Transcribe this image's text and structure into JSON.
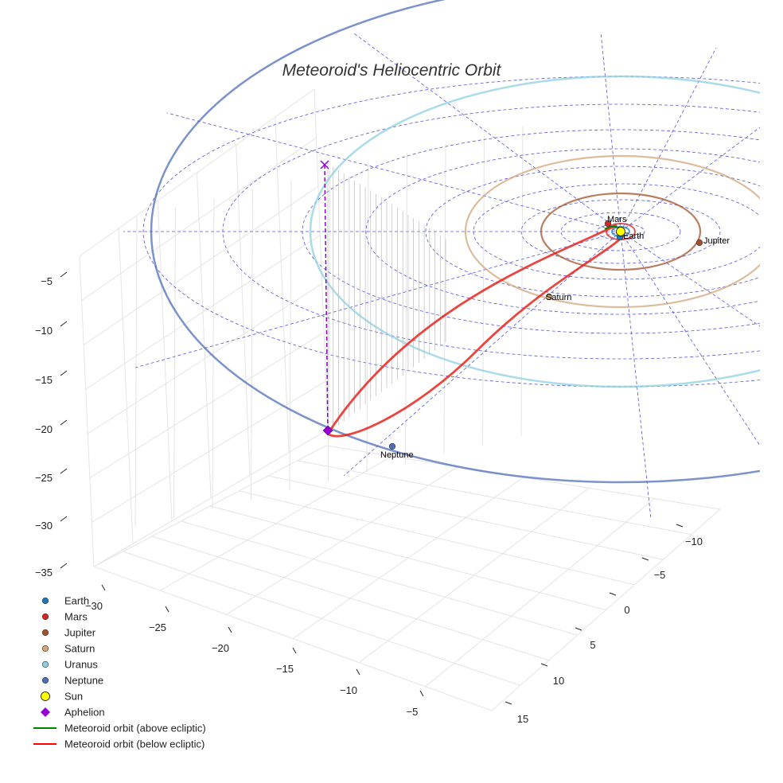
{
  "chart_data": {
    "type": "line",
    "title": "Meteoroid's Heliocentric Orbit",
    "projection": "3d",
    "grid": true,
    "legend_position": "bottom-left",
    "axes": {
      "x": {
        "ticks": [
          -30,
          -25,
          -20,
          -15,
          -10,
          -5
        ],
        "tick_labels": [
          "−30",
          "−25",
          "−20",
          "−15",
          "−10",
          "−5"
        ]
      },
      "y": {
        "ticks": [
          -10,
          -5,
          0,
          5,
          10,
          15
        ],
        "tick_labels": [
          "−10",
          "−5",
          "0",
          "5",
          "10",
          "15"
        ]
      },
      "z": {
        "ticks": [
          -5,
          -10,
          -15,
          -20,
          -25,
          -30,
          -35
        ],
        "tick_labels": [
          "−5",
          "−10",
          "−15",
          "−20",
          "−25",
          "−30",
          "−35"
        ]
      }
    },
    "planets": [
      {
        "name": "Earth",
        "orbit_radius_au": 1.0,
        "color": "#1f77b4",
        "label": "Earth"
      },
      {
        "name": "Mars",
        "orbit_radius_au": 1.52,
        "color": "#d62728",
        "label": "Mars"
      },
      {
        "name": "Jupiter",
        "orbit_radius_au": 5.2,
        "color": "#a0522d",
        "label": "Jupiter"
      },
      {
        "name": "Saturn",
        "orbit_radius_au": 9.58,
        "color": "#d2a679",
        "label": "Saturn"
      },
      {
        "name": "Uranus",
        "orbit_radius_au": 19.2,
        "color": "#8ecfe0",
        "label": ""
      },
      {
        "name": "Neptune",
        "orbit_radius_au": 30.1,
        "color": "#4f6db8",
        "label": "Neptune"
      }
    ],
    "sun": {
      "name": "Sun",
      "color": "#ffff00"
    },
    "aphelion": {
      "name": "Aphelion",
      "color": "#9400d3"
    },
    "series": [
      {
        "name": "Meteoroid orbit (above ecliptic)",
        "color": "#008000"
      },
      {
        "name": "Meteoroid orbit (below ecliptic)",
        "color": "#ff0000"
      }
    ]
  },
  "legend": {
    "items": [
      {
        "label": "Earth",
        "marker": "circle",
        "color": "#1f77b4"
      },
      {
        "label": "Mars",
        "marker": "circle",
        "color": "#d62728"
      },
      {
        "label": "Jupiter",
        "marker": "circle",
        "color": "#a0522d"
      },
      {
        "label": "Saturn",
        "marker": "circle",
        "color": "#d2a679"
      },
      {
        "label": "Uranus",
        "marker": "circle",
        "color": "#8ecfe0"
      },
      {
        "label": "Neptune",
        "marker": "circle",
        "color": "#4f6db8"
      },
      {
        "label": "Sun",
        "marker": "sun",
        "color": "#ffff00"
      },
      {
        "label": "Aphelion",
        "marker": "diamond",
        "color": "#9400d3"
      },
      {
        "label": "Meteoroid orbit (above ecliptic)",
        "marker": "line",
        "color": "#008000"
      },
      {
        "label": "Meteoroid orbit (below ecliptic)",
        "marker": "line",
        "color": "#ff0000"
      }
    ]
  }
}
